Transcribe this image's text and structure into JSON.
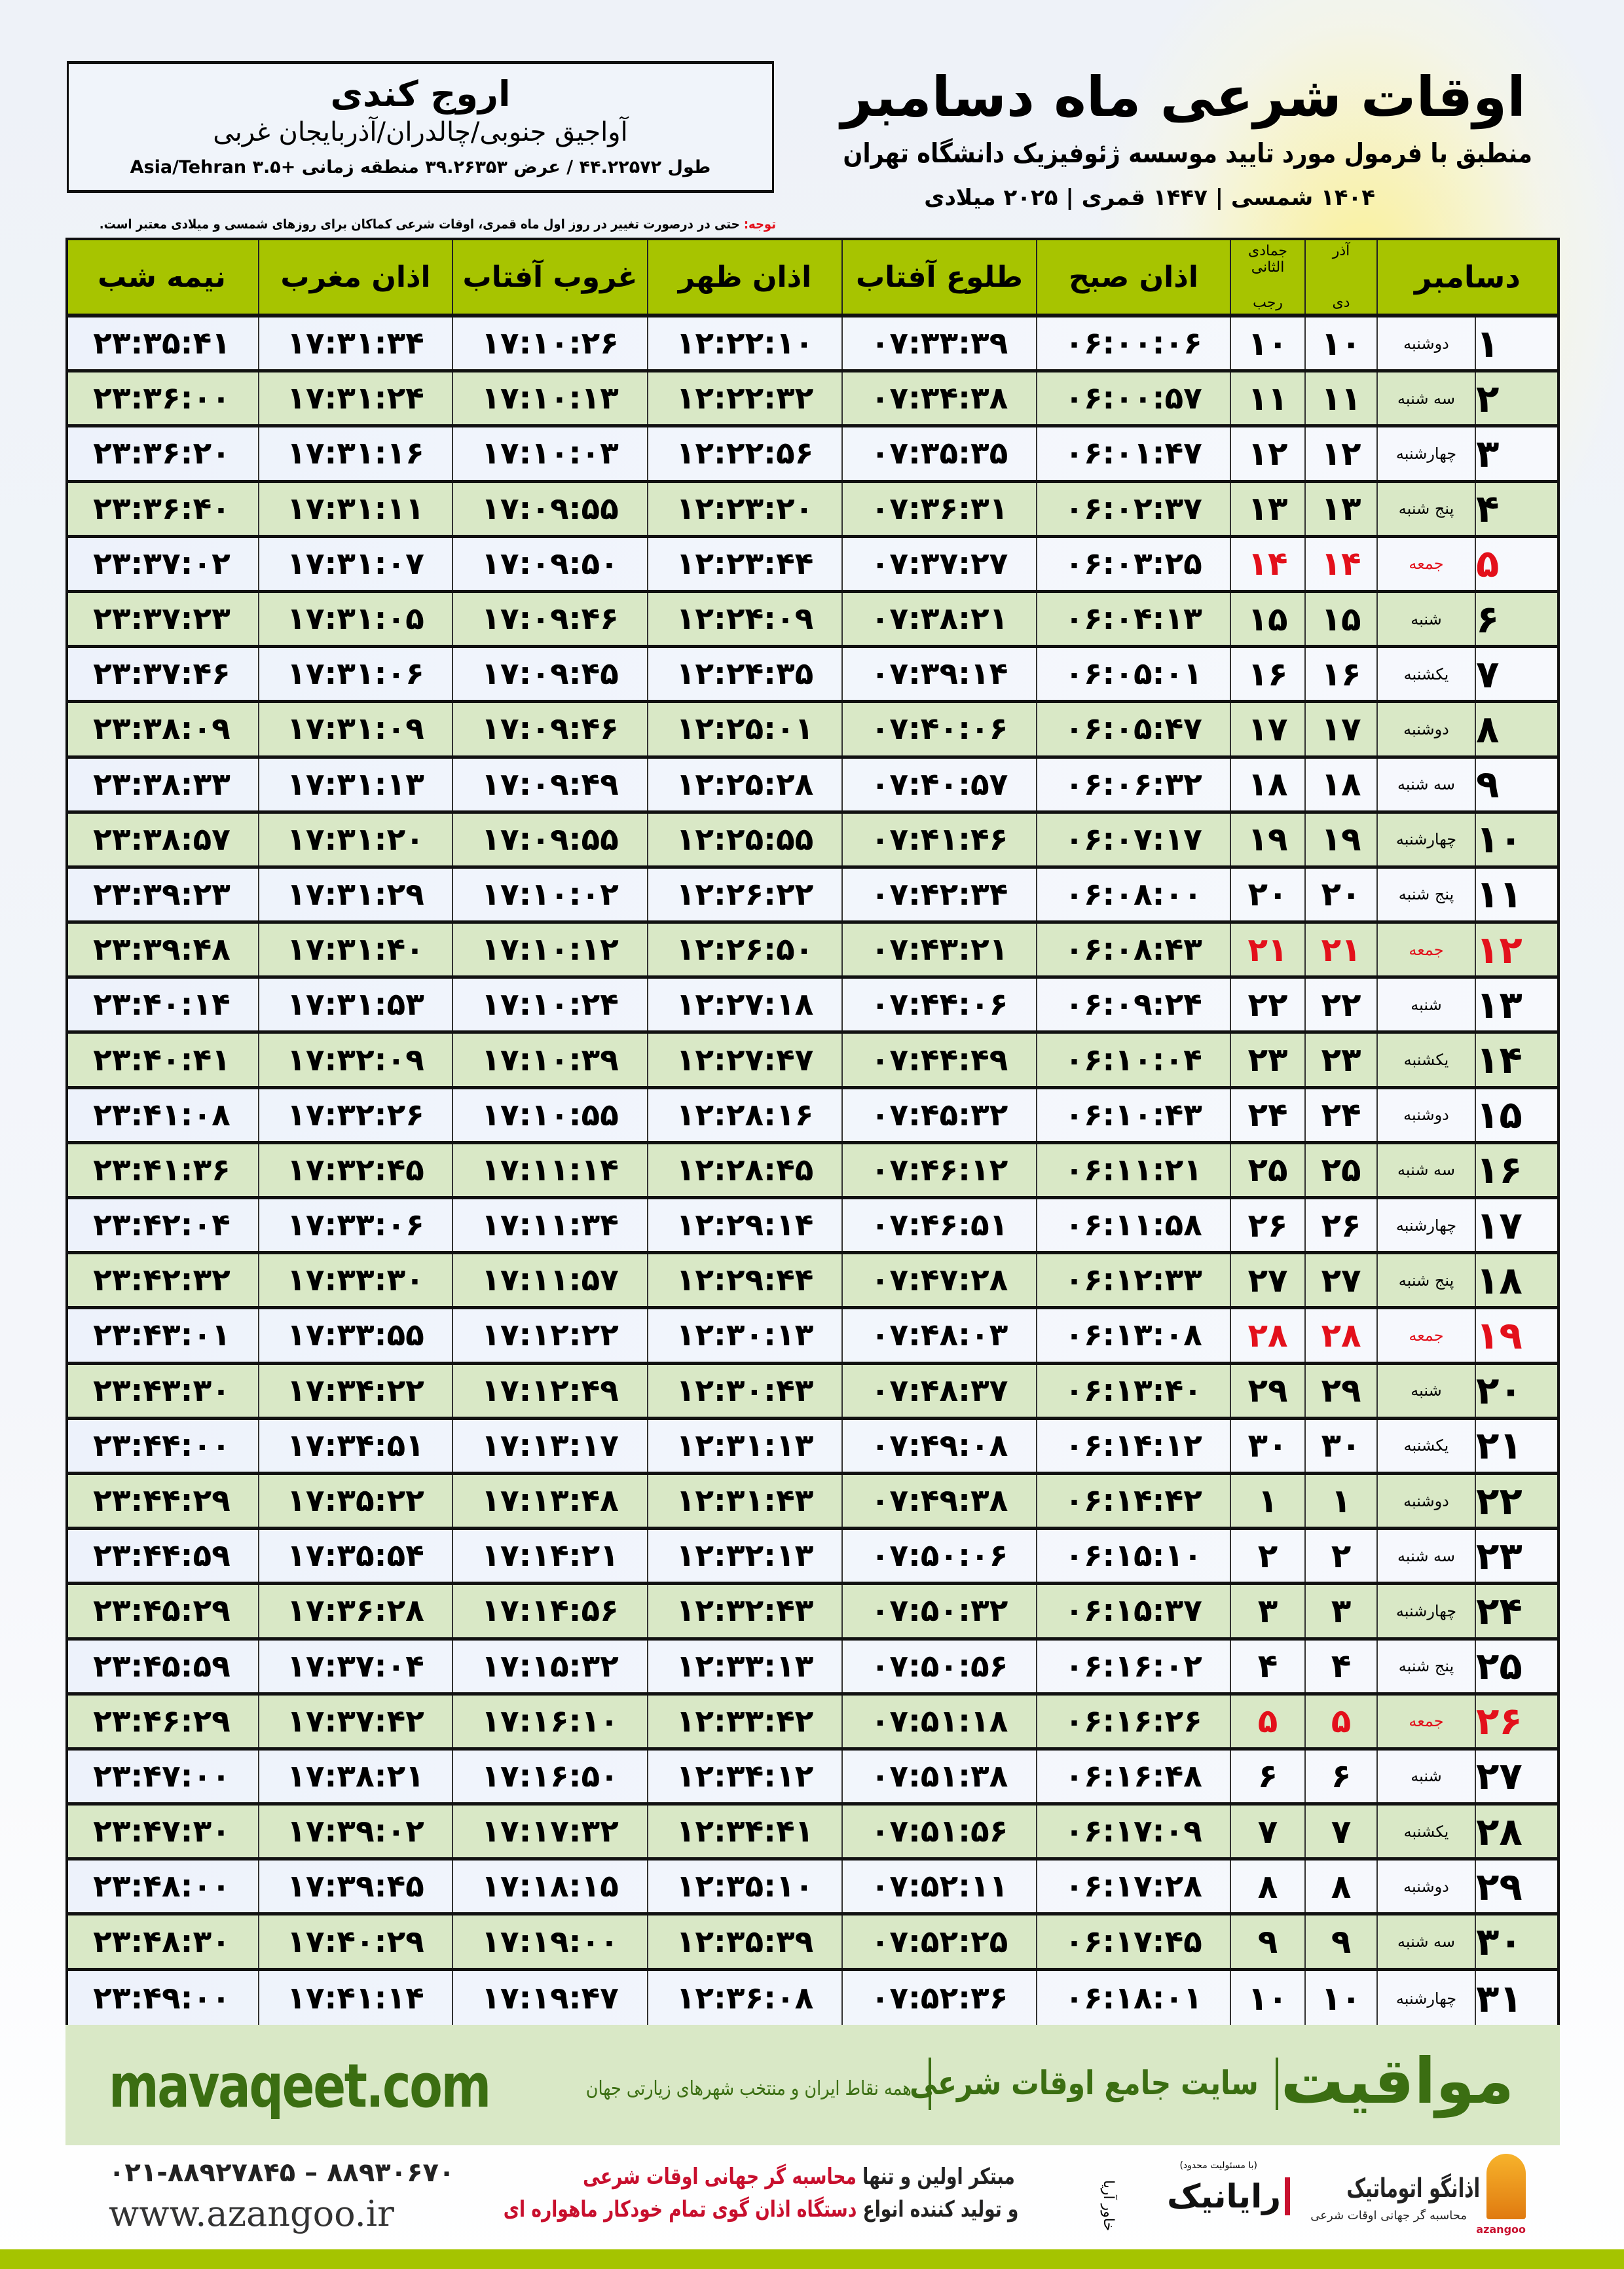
{
  "header": {
    "title": "اوقات شرعی ماه دسامبر",
    "subtitle": "منطبق با فرمول مورد تایید موسسه ژئوفیزیک دانشگاه تهران",
    "dates_line": "۱۴۰۴ شمسی | ۱۴۴۷ قمری | ۲۰۲۵ میلادی",
    "note_label": "توجه:",
    "note_text": " حتی در درصورت تغییر در روز اول ماه قمری، اوقات شرعی کماکان برای روزهای شمسی و میلادی معتبر است."
  },
  "location": {
    "name": "اروج کندی",
    "region": "آواجیق جنوبی/چالدران/آذربایجان غربی",
    "coords": "طول ۴۴.۲۲۵۷۲ / عرض ۳۹.۲۶۳۵۳ منطقه زمانی +۳.۵ Asia/Tehran"
  },
  "colors": {
    "header_green": "#a7c400",
    "row_green": "#d9e8c6",
    "holiday_red": "#e3101b",
    "brand_green": "#3b6e12"
  },
  "table": {
    "headers": {
      "month": "دسامبر",
      "shamsi_top": "آذر",
      "shamsi_bottom": "دی",
      "hijri_top": "جمادی الثانی",
      "hijri_bottom": "رجب",
      "fajr": "اذان صبح",
      "sunrise": "طلوع آفتاب",
      "dhuhr": "اذان ظهر",
      "sunset": "غروب آفتاب",
      "maghrib": "اذان مغرب",
      "midnight": "نیمه شب"
    },
    "columns": [
      "day",
      "weekday",
      "shamsi",
      "hijri",
      "fajr",
      "sunrise",
      "dhuhr",
      "sunset",
      "maghrib",
      "midnight"
    ],
    "holiday_weekday": "جمعه",
    "rows": [
      [
        "۱",
        "دوشنبه",
        "۱۰",
        "۱۰",
        "۰۶:۰۰:۰۶",
        "۰۷:۳۳:۳۹",
        "۱۲:۲۲:۱۰",
        "۱۷:۱۰:۲۶",
        "۱۷:۳۱:۳۴",
        "۲۳:۳۵:۴۱"
      ],
      [
        "۲",
        "سه شنبه",
        "۱۱",
        "۱۱",
        "۰۶:۰۰:۵۷",
        "۰۷:۳۴:۳۸",
        "۱۲:۲۲:۳۲",
        "۱۷:۱۰:۱۳",
        "۱۷:۳۱:۲۴",
        "۲۳:۳۶:۰۰"
      ],
      [
        "۳",
        "چهارشنبه",
        "۱۲",
        "۱۲",
        "۰۶:۰۱:۴۷",
        "۰۷:۳۵:۳۵",
        "۱۲:۲۲:۵۶",
        "۱۷:۱۰:۰۳",
        "۱۷:۳۱:۱۶",
        "۲۳:۳۶:۲۰"
      ],
      [
        "۴",
        "پنج شنبه",
        "۱۳",
        "۱۳",
        "۰۶:۰۲:۳۷",
        "۰۷:۳۶:۳۱",
        "۱۲:۲۳:۲۰",
        "۱۷:۰۹:۵۵",
        "۱۷:۳۱:۱۱",
        "۲۳:۳۶:۴۰"
      ],
      [
        "۵",
        "جمعه",
        "۱۴",
        "۱۴",
        "۰۶:۰۳:۲۵",
        "۰۷:۳۷:۲۷",
        "۱۲:۲۳:۴۴",
        "۱۷:۰۹:۵۰",
        "۱۷:۳۱:۰۷",
        "۲۳:۳۷:۰۲"
      ],
      [
        "۶",
        "شنبه",
        "۱۵",
        "۱۵",
        "۰۶:۰۴:۱۳",
        "۰۷:۳۸:۲۱",
        "۱۲:۲۴:۰۹",
        "۱۷:۰۹:۴۶",
        "۱۷:۳۱:۰۵",
        "۲۳:۳۷:۲۳"
      ],
      [
        "۷",
        "یکشنبه",
        "۱۶",
        "۱۶",
        "۰۶:۰۵:۰۱",
        "۰۷:۳۹:۱۴",
        "۱۲:۲۴:۳۵",
        "۱۷:۰۹:۴۵",
        "۱۷:۳۱:۰۶",
        "۲۳:۳۷:۴۶"
      ],
      [
        "۸",
        "دوشنبه",
        "۱۷",
        "۱۷",
        "۰۶:۰۵:۴۷",
        "۰۷:۴۰:۰۶",
        "۱۲:۲۵:۰۱",
        "۱۷:۰۹:۴۶",
        "۱۷:۳۱:۰۹",
        "۲۳:۳۸:۰۹"
      ],
      [
        "۹",
        "سه شنبه",
        "۱۸",
        "۱۸",
        "۰۶:۰۶:۳۲",
        "۰۷:۴۰:۵۷",
        "۱۲:۲۵:۲۸",
        "۱۷:۰۹:۴۹",
        "۱۷:۳۱:۱۳",
        "۲۳:۳۸:۳۳"
      ],
      [
        "۱۰",
        "چهارشنبه",
        "۱۹",
        "۱۹",
        "۰۶:۰۷:۱۷",
        "۰۷:۴۱:۴۶",
        "۱۲:۲۵:۵۵",
        "۱۷:۰۹:۵۵",
        "۱۷:۳۱:۲۰",
        "۲۳:۳۸:۵۷"
      ],
      [
        "۱۱",
        "پنج شنبه",
        "۲۰",
        "۲۰",
        "۰۶:۰۸:۰۰",
        "۰۷:۴۲:۳۴",
        "۱۲:۲۶:۲۲",
        "۱۷:۱۰:۰۲",
        "۱۷:۳۱:۲۹",
        "۲۳:۳۹:۲۳"
      ],
      [
        "۱۲",
        "جمعه",
        "۲۱",
        "۲۱",
        "۰۶:۰۸:۴۳",
        "۰۷:۴۳:۲۱",
        "۱۲:۲۶:۵۰",
        "۱۷:۱۰:۱۲",
        "۱۷:۳۱:۴۰",
        "۲۳:۳۹:۴۸"
      ],
      [
        "۱۳",
        "شنبه",
        "۲۲",
        "۲۲",
        "۰۶:۰۹:۲۴",
        "۰۷:۴۴:۰۶",
        "۱۲:۲۷:۱۸",
        "۱۷:۱۰:۲۴",
        "۱۷:۳۱:۵۳",
        "۲۳:۴۰:۱۴"
      ],
      [
        "۱۴",
        "یکشنبه",
        "۲۳",
        "۲۳",
        "۰۶:۱۰:۰۴",
        "۰۷:۴۴:۴۹",
        "۱۲:۲۷:۴۷",
        "۱۷:۱۰:۳۹",
        "۱۷:۳۲:۰۹",
        "۲۳:۴۰:۴۱"
      ],
      [
        "۱۵",
        "دوشنبه",
        "۲۴",
        "۲۴",
        "۰۶:۱۰:۴۳",
        "۰۷:۴۵:۳۲",
        "۱۲:۲۸:۱۶",
        "۱۷:۱۰:۵۵",
        "۱۷:۳۲:۲۶",
        "۲۳:۴۱:۰۸"
      ],
      [
        "۱۶",
        "سه شنبه",
        "۲۵",
        "۲۵",
        "۰۶:۱۱:۲۱",
        "۰۷:۴۶:۱۲",
        "۱۲:۲۸:۴۵",
        "۱۷:۱۱:۱۴",
        "۱۷:۳۲:۴۵",
        "۲۳:۴۱:۳۶"
      ],
      [
        "۱۷",
        "چهارشنبه",
        "۲۶",
        "۲۶",
        "۰۶:۱۱:۵۸",
        "۰۷:۴۶:۵۱",
        "۱۲:۲۹:۱۴",
        "۱۷:۱۱:۳۴",
        "۱۷:۳۳:۰۶",
        "۲۳:۴۲:۰۴"
      ],
      [
        "۱۸",
        "پنج شنبه",
        "۲۷",
        "۲۷",
        "۰۶:۱۲:۳۳",
        "۰۷:۴۷:۲۸",
        "۱۲:۲۹:۴۴",
        "۱۷:۱۱:۵۷",
        "۱۷:۳۳:۳۰",
        "۲۳:۴۲:۳۲"
      ],
      [
        "۱۹",
        "جمعه",
        "۲۸",
        "۲۸",
        "۰۶:۱۳:۰۸",
        "۰۷:۴۸:۰۳",
        "۱۲:۳۰:۱۳",
        "۱۷:۱۲:۲۲",
        "۱۷:۳۳:۵۵",
        "۲۳:۴۳:۰۱"
      ],
      [
        "۲۰",
        "شنبه",
        "۲۹",
        "۲۹",
        "۰۶:۱۳:۴۰",
        "۰۷:۴۸:۳۷",
        "۱۲:۳۰:۴۳",
        "۱۷:۱۲:۴۹",
        "۱۷:۳۴:۲۲",
        "۲۳:۴۳:۳۰"
      ],
      [
        "۲۱",
        "یکشنبه",
        "۳۰",
        "۳۰",
        "۰۶:۱۴:۱۲",
        "۰۷:۴۹:۰۸",
        "۱۲:۳۱:۱۳",
        "۱۷:۱۳:۱۷",
        "۱۷:۳۴:۵۱",
        "۲۳:۴۴:۰۰"
      ],
      [
        "۲۲",
        "دوشنبه",
        "۱",
        "۱",
        "۰۶:۱۴:۴۲",
        "۰۷:۴۹:۳۸",
        "۱۲:۳۱:۴۳",
        "۱۷:۱۳:۴۸",
        "۱۷:۳۵:۲۲",
        "۲۳:۴۴:۲۹"
      ],
      [
        "۲۳",
        "سه شنبه",
        "۲",
        "۲",
        "۰۶:۱۵:۱۰",
        "۰۷:۵۰:۰۶",
        "۱۲:۳۲:۱۳",
        "۱۷:۱۴:۲۱",
        "۱۷:۳۵:۵۴",
        "۲۳:۴۴:۵۹"
      ],
      [
        "۲۴",
        "چهارشنبه",
        "۳",
        "۳",
        "۰۶:۱۵:۳۷",
        "۰۷:۵۰:۳۲",
        "۱۲:۳۲:۴۳",
        "۱۷:۱۴:۵۶",
        "۱۷:۳۶:۲۸",
        "۲۳:۴۵:۲۹"
      ],
      [
        "۲۵",
        "پنج شنبه",
        "۴",
        "۴",
        "۰۶:۱۶:۰۲",
        "۰۷:۵۰:۵۶",
        "۱۲:۳۳:۱۳",
        "۱۷:۱۵:۳۲",
        "۱۷:۳۷:۰۴",
        "۲۳:۴۵:۵۹"
      ],
      [
        "۲۶",
        "جمعه",
        "۵",
        "۵",
        "۰۶:۱۶:۲۶",
        "۰۷:۵۱:۱۸",
        "۱۲:۳۳:۴۲",
        "۱۷:۱۶:۱۰",
        "۱۷:۳۷:۴۲",
        "۲۳:۴۶:۲۹"
      ],
      [
        "۲۷",
        "شنبه",
        "۶",
        "۶",
        "۰۶:۱۶:۴۸",
        "۰۷:۵۱:۳۸",
        "۱۲:۳۴:۱۲",
        "۱۷:۱۶:۵۰",
        "۱۷:۳۸:۲۱",
        "۲۳:۴۷:۰۰"
      ],
      [
        "۲۸",
        "یکشنبه",
        "۷",
        "۷",
        "۰۶:۱۷:۰۹",
        "۰۷:۵۱:۵۶",
        "۱۲:۳۴:۴۱",
        "۱۷:۱۷:۳۲",
        "۱۷:۳۹:۰۲",
        "۲۳:۴۷:۳۰"
      ],
      [
        "۲۹",
        "دوشنبه",
        "۸",
        "۸",
        "۰۶:۱۷:۲۸",
        "۰۷:۵۲:۱۱",
        "۱۲:۳۵:۱۰",
        "۱۷:۱۸:۱۵",
        "۱۷:۳۹:۴۵",
        "۲۳:۴۸:۰۰"
      ],
      [
        "۳۰",
        "سه شنبه",
        "۹",
        "۹",
        "۰۶:۱۷:۴۵",
        "۰۷:۵۲:۲۵",
        "۱۲:۳۵:۳۹",
        "۱۷:۱۹:۰۰",
        "۱۷:۴۰:۲۹",
        "۲۳:۴۸:۳۰"
      ],
      [
        "۳۱",
        "چهارشنبه",
        "۱۰",
        "۱۰",
        "۰۶:۱۸:۰۱",
        "۰۷:۵۲:۳۶",
        "۱۲:۳۶:۰۸",
        "۱۷:۱۹:۴۷",
        "۱۷:۴۱:۱۴",
        "۲۳:۴۹:۰۰"
      ]
    ]
  },
  "footer_band": {
    "brand": "مواقیت",
    "tagline": "سایت جامع اوقات شرعی",
    "tagline2": "همه نقاط ایران و منتخب شهرهای زیارتی جهان",
    "url": "mavaqeet.com"
  },
  "footer": {
    "phones": "۰۲۱-۸۸۹۲۷۸۴۵ – ۸۸۹۳۰۶۷۰",
    "website": "www.azangoo.ir",
    "promo_line1_plain": "مبتکر اولین و تنها ",
    "promo_line1_red": "محاسبه گر جهانی اوقات شرعی",
    "promo_line2_plain": "و تولید کننده انواع ",
    "promo_line2_red": "دستگاه اذان گوی تمام خودکار ماهواره ای",
    "rayanik_logo": {
      "name": "رایانیک",
      "sub": "خاور آریا",
      "small": "(با مسئولیت محدود)"
    },
    "azangoo_logo": {
      "name": "اذانگو اتوماتیک",
      "sub": "محاسبه گر جهانی اوقات شرعی",
      "en": "azangoo"
    }
  }
}
